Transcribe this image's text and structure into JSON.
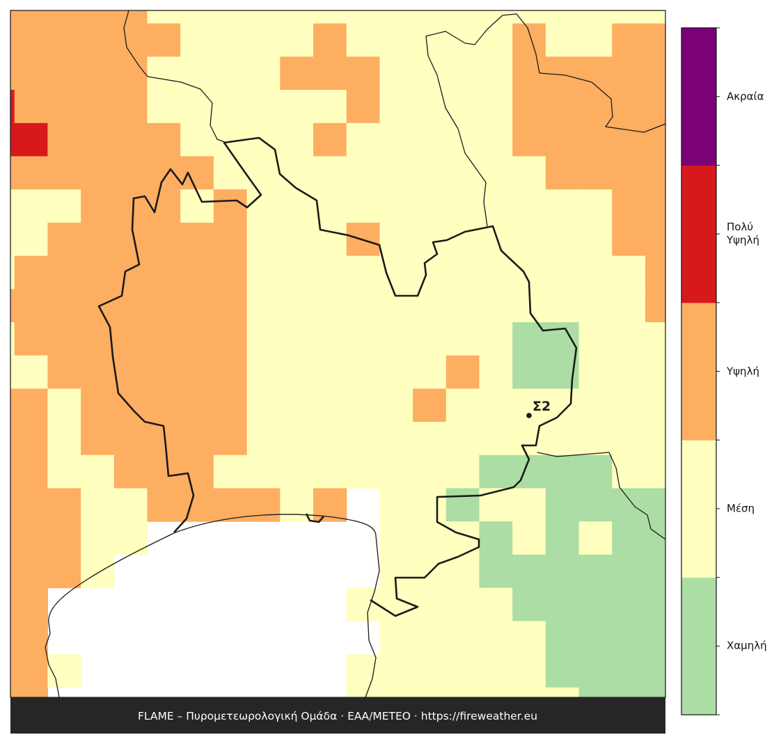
{
  "map": {
    "grid": [
      [
        3,
        3,
        3,
        3,
        3,
        2,
        2,
        2,
        2,
        2,
        2,
        2,
        2,
        2,
        2,
        2,
        2,
        2,
        2,
        2,
        2
      ],
      [
        3,
        3,
        3,
        3,
        3,
        3,
        2,
        2,
        2,
        2,
        3,
        2,
        2,
        2,
        2,
        2,
        3,
        2,
        2,
        3,
        3
      ],
      [
        3,
        3,
        3,
        3,
        3,
        2,
        2,
        2,
        2,
        3,
        3,
        3,
        2,
        2,
        2,
        2,
        3,
        3,
        3,
        3,
        3
      ],
      [
        4,
        3,
        3,
        3,
        3,
        2,
        2,
        2,
        2,
        2,
        2,
        3,
        2,
        2,
        2,
        2,
        3,
        3,
        3,
        3,
        3
      ],
      [
        4,
        4,
        3,
        3,
        3,
        3,
        2,
        2,
        2,
        2,
        3,
        2,
        2,
        2,
        2,
        2,
        3,
        3,
        3,
        3,
        3
      ],
      [
        3,
        3,
        3,
        3,
        3,
        3,
        3,
        2,
        2,
        2,
        2,
        2,
        2,
        2,
        2,
        2,
        2,
        3,
        3,
        3,
        3
      ],
      [
        2,
        2,
        2,
        3,
        3,
        3,
        2,
        3,
        2,
        2,
        2,
        2,
        2,
        2,
        2,
        2,
        2,
        2,
        2,
        3,
        3
      ],
      [
        2,
        2,
        3,
        3,
        3,
        3,
        3,
        3,
        2,
        2,
        2,
        3,
        2,
        2,
        2,
        2,
        2,
        2,
        2,
        3,
        3
      ],
      [
        2,
        3,
        3,
        3,
        3,
        3,
        3,
        3,
        2,
        2,
        2,
        2,
        2,
        2,
        2,
        2,
        2,
        2,
        2,
        2,
        3
      ],
      [
        3,
        3,
        3,
        3,
        3,
        3,
        3,
        3,
        2,
        2,
        2,
        2,
        2,
        2,
        2,
        2,
        2,
        2,
        2,
        2,
        3
      ],
      [
        2,
        3,
        3,
        3,
        3,
        3,
        3,
        3,
        2,
        2,
        2,
        2,
        2,
        2,
        2,
        2,
        1,
        1,
        2,
        2,
        2
      ],
      [
        2,
        2,
        3,
        3,
        3,
        3,
        3,
        3,
        2,
        2,
        2,
        2,
        2,
        2,
        3,
        2,
        1,
        1,
        2,
        2,
        2
      ],
      [
        3,
        3,
        2,
        3,
        3,
        3,
        3,
        3,
        2,
        2,
        2,
        2,
        2,
        3,
        2,
        2,
        2,
        2,
        2,
        2,
        2
      ],
      [
        3,
        3,
        2,
        3,
        3,
        3,
        3,
        3,
        2,
        2,
        2,
        2,
        2,
        2,
        2,
        2,
        2,
        2,
        2,
        2,
        2
      ],
      [
        3,
        3,
        2,
        2,
        3,
        3,
        3,
        2,
        2,
        2,
        2,
        2,
        2,
        2,
        2,
        1,
        1,
        1,
        1,
        2,
        2
      ],
      [
        3,
        3,
        3,
        2,
        2,
        3,
        3,
        3,
        3,
        2,
        3,
        null,
        2,
        2,
        1,
        2,
        2,
        1,
        1,
        1,
        1
      ],
      [
        3,
        3,
        3,
        2,
        2,
        null,
        null,
        null,
        null,
        null,
        null,
        null,
        2,
        2,
        2,
        1,
        2,
        1,
        2,
        1,
        1
      ],
      [
        3,
        3,
        3,
        2,
        null,
        null,
        null,
        null,
        null,
        null,
        null,
        null,
        2,
        2,
        2,
        1,
        1,
        1,
        1,
        1,
        1
      ],
      [
        3,
        3,
        null,
        null,
        null,
        null,
        null,
        null,
        null,
        null,
        null,
        2,
        2,
        2,
        2,
        2,
        1,
        1,
        1,
        1,
        1
      ],
      [
        3,
        3,
        null,
        null,
        null,
        null,
        null,
        null,
        null,
        null,
        null,
        null,
        2,
        2,
        2,
        2,
        2,
        1,
        1,
        1,
        1
      ],
      [
        3,
        3,
        2,
        null,
        null,
        null,
        null,
        null,
        null,
        null,
        null,
        2,
        2,
        2,
        2,
        2,
        2,
        1,
        1,
        1,
        1
      ],
      [
        3,
        3,
        null,
        null,
        null,
        null,
        null,
        null,
        null,
        null,
        null,
        2,
        2,
        2,
        2,
        2,
        2,
        2,
        1,
        1,
        1
      ]
    ],
    "station": "Σ2"
  },
  "legend": {
    "levels": [
      {
        "label": "Χαμηλή",
        "color": "#abdda4"
      },
      {
        "label": "Μέση",
        "color": "#ffffbf"
      },
      {
        "label": "Υψηλή",
        "color": "#fdae61"
      },
      {
        "label": "Πολύ Υψηλή",
        "color": "#d7191c"
      },
      {
        "label": "Ακραία",
        "color": "#7a0177"
      }
    ]
  },
  "footer": "FLAME – Πυρομετεωρολογική Ομάδα · ΕΑΑ/METEO · https://fireweather.eu"
}
